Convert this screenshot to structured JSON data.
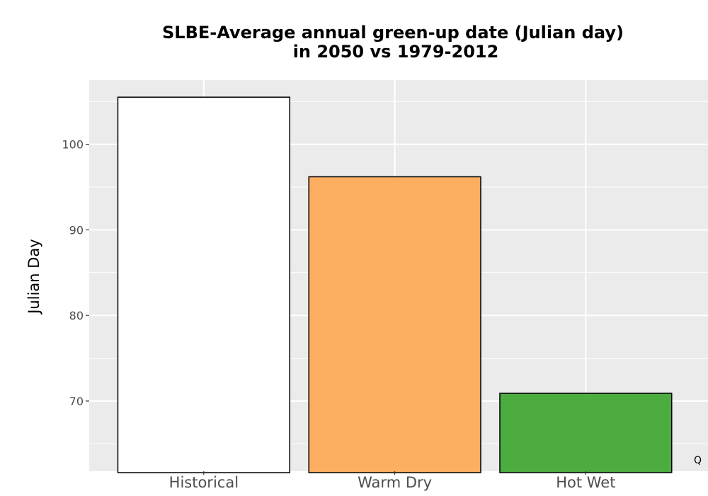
{
  "chart_data": {
    "type": "bar",
    "title": "SLBE-Average annual green-up date (Julian day)",
    "subtitle": "in 2050 vs 1979-2012",
    "xlabel": "",
    "ylabel": "Julian Day",
    "categories": [
      "Historical",
      "Warm Dry",
      "Hot Wet"
    ],
    "values": [
      105.5,
      96.2,
      70.9
    ],
    "colors": [
      "#ffffff",
      "#fdae61",
      "#4dac40"
    ],
    "outline_color": "#000000",
    "ylim": [
      61.8,
      107.5
    ],
    "yticks": [
      70,
      80,
      90,
      100
    ],
    "grid": true,
    "panel_background": "#ebebeb",
    "corner_mark": "Q"
  }
}
